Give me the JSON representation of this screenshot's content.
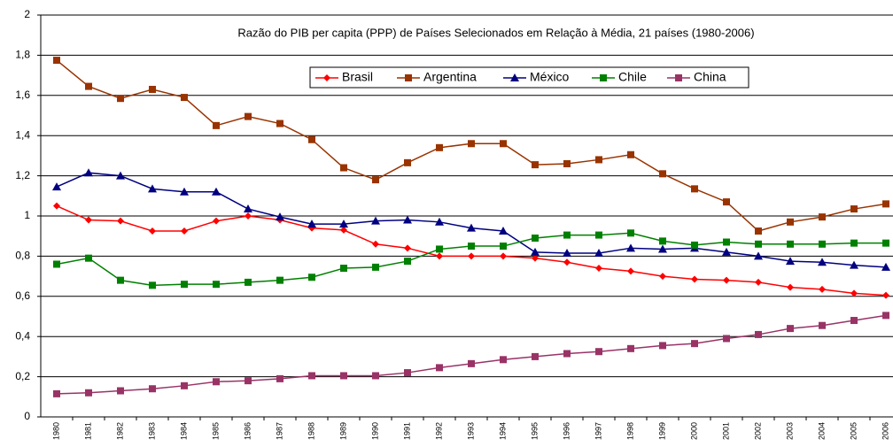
{
  "chart_data": {
    "type": "line",
    "subtitle": "Razão do PIB per capita (PPP) de Países Selecionados em Relação à Média, 21 países (1980-2006)",
    "categories": [
      "1980",
      "1981",
      "1982",
      "1983",
      "1984",
      "1985",
      "1986",
      "1987",
      "1988",
      "1989",
      "1990",
      "1991",
      "1992",
      "1993",
      "1994",
      "1995",
      "1996",
      "1997",
      "1998",
      "1999",
      "2000",
      "2001",
      "2002",
      "2003",
      "2004",
      "2005",
      "2006"
    ],
    "series": [
      {
        "name": "Brasil",
        "color": "#ff0000",
        "marker": "diamond",
        "values": [
          1.05,
          0.98,
          0.975,
          0.925,
          0.925,
          0.975,
          1.0,
          0.98,
          0.94,
          0.93,
          0.86,
          0.84,
          0.8,
          0.8,
          0.8,
          0.79,
          0.77,
          0.74,
          0.725,
          0.7,
          0.685,
          0.68,
          0.67,
          0.645,
          0.635,
          0.615,
          0.605
        ]
      },
      {
        "name": "Argentina",
        "color": "#993300",
        "marker": "square",
        "values": [
          1.775,
          1.645,
          1.585,
          1.63,
          1.59,
          1.45,
          1.495,
          1.46,
          1.38,
          1.24,
          1.18,
          1.265,
          1.34,
          1.36,
          1.36,
          1.255,
          1.26,
          1.28,
          1.305,
          1.21,
          1.135,
          1.07,
          0.925,
          0.97,
          0.995,
          1.035,
          1.06
        ]
      },
      {
        "name": "México",
        "color": "#000080",
        "marker": "triangle",
        "values": [
          1.145,
          1.215,
          1.2,
          1.135,
          1.12,
          1.12,
          1.035,
          0.995,
          0.96,
          0.96,
          0.975,
          0.98,
          0.97,
          0.94,
          0.925,
          0.82,
          0.815,
          0.815,
          0.84,
          0.835,
          0.84,
          0.82,
          0.8,
          0.775,
          0.77,
          0.755,
          0.745
        ]
      },
      {
        "name": "Chile",
        "color": "#008000",
        "marker": "square",
        "values": [
          0.76,
          0.79,
          0.68,
          0.655,
          0.66,
          0.66,
          0.67,
          0.68,
          0.695,
          0.74,
          0.745,
          0.775,
          0.835,
          0.85,
          0.85,
          0.89,
          0.905,
          0.905,
          0.915,
          0.875,
          0.855,
          0.87,
          0.86,
          0.86,
          0.86,
          0.865,
          0.865
        ]
      },
      {
        "name": "China",
        "color": "#993366",
        "marker": "square",
        "values": [
          0.115,
          0.12,
          0.13,
          0.14,
          0.155,
          0.175,
          0.18,
          0.19,
          0.205,
          0.205,
          0.205,
          0.22,
          0.245,
          0.265,
          0.285,
          0.3,
          0.315,
          0.325,
          0.34,
          0.355,
          0.365,
          0.39,
          0.41,
          0.44,
          0.455,
          0.48,
          0.505
        ]
      }
    ],
    "ylim": [
      0,
      2
    ],
    "yticks": [
      0,
      {
        "value": 0.2,
        "label": "0,2"
      },
      {
        "value": 0.4,
        "label": "0,4"
      },
      {
        "value": 0.6,
        "label": "0,6"
      },
      {
        "value": 0.8,
        "label": "0,8"
      },
      1,
      {
        "value": 1.2,
        "label": "1,2"
      },
      {
        "value": 1.4,
        "label": "1,4"
      },
      {
        "value": 1.6,
        "label": "1,6"
      },
      {
        "value": 1.8,
        "label": "1,8"
      },
      2
    ],
    "grid": true,
    "legend": "top"
  }
}
